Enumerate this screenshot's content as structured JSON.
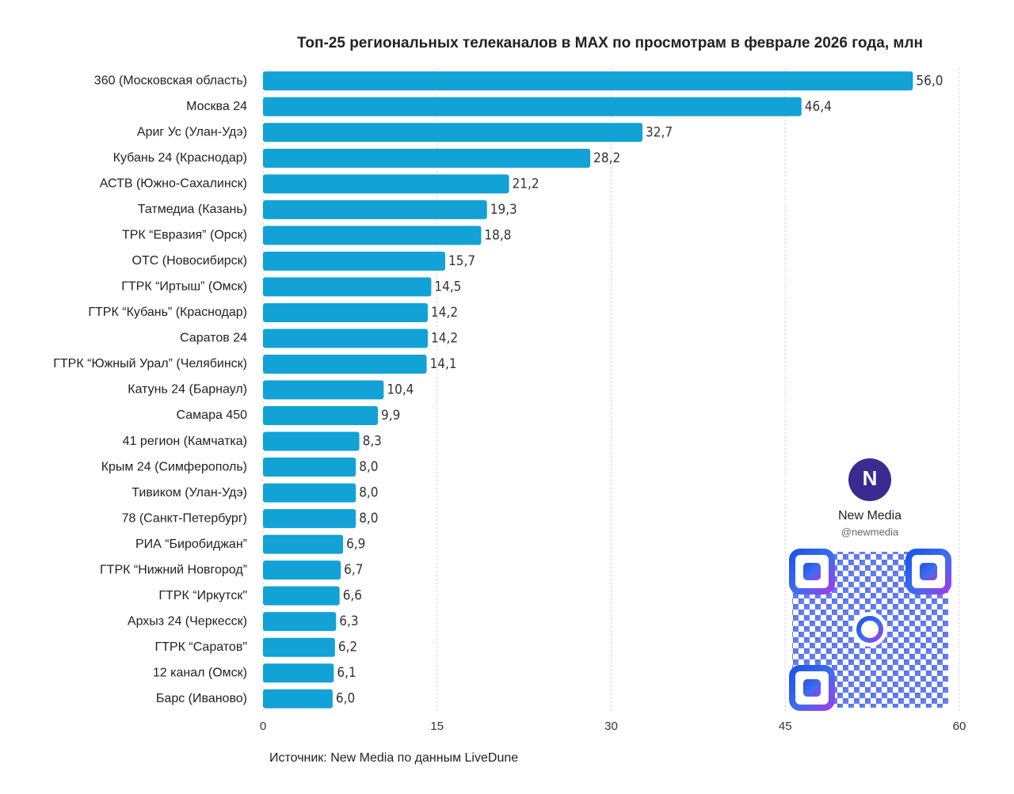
{
  "chart_data": {
    "type": "barh",
    "title": "Топ-25 региональных телеканалов в MAX по просмотрам в феврале 2026 года, млн",
    "categories": [
      "360 (Московская область)",
      "Москва 24",
      "Ариг Ус (Улан-Удэ)",
      "Кубань 24 (Краснодар)",
      "АСТВ (Южно-Сахалинск)",
      "Татмедиа (Казань)",
      "ТРК “Евразия” (Орск)",
      "ОТС (Новосибирск)",
      "ГТРК “Иртыш” (Омск)",
      "ГТРК “Кубань” (Краснодар)",
      "Саратов 24",
      "ГТРК “Южный Урал” (Челябинск)",
      "Катунь 24 (Барнаул)",
      "Самара 450",
      "41 регион (Камчатка)",
      "Крым 24 (Симферополь)",
      "Тивиком (Улан-Удэ)",
      "78 (Санкт-Петербург)",
      "РИА “Биробиджан”",
      "ГТРК “Нижний Новгород”",
      "ГТРК “Иркутск\"",
      "Архыз 24 (Черкесск)",
      "ГТРК “Саратов\"",
      "12 канал (Омск)",
      "Барс (Иваново)"
    ],
    "values": [
      56.0,
      46.4,
      32.7,
      28.2,
      21.2,
      19.3,
      18.8,
      15.7,
      14.5,
      14.2,
      14.2,
      14.1,
      10.4,
      9.9,
      8.3,
      8.0,
      8.0,
      8.0,
      6.9,
      6.7,
      6.6,
      6.3,
      6.2,
      6.1,
      6.0
    ],
    "value_labels": [
      "56,0",
      "46,4",
      "32,7",
      "28,2",
      "21,2",
      "19,3",
      "18,8",
      "15,7",
      "14,5",
      "14,2",
      "14,2",
      "14,1",
      "10,4",
      "9,9",
      "8,3",
      "8,0",
      "8,0",
      "8,0",
      "6,9",
      "6,7",
      "6,6",
      "6,3",
      "6,2",
      "6,1",
      "6,0"
    ],
    "color": "#12a2d6",
    "xlim": [
      0,
      60
    ],
    "xticks": [
      0,
      15,
      30,
      45,
      60
    ],
    "grid": true,
    "source": "Источник: New Media по данным LiveDune",
    "brand": {
      "name": "New Media",
      "handle": "@newmedia"
    }
  }
}
